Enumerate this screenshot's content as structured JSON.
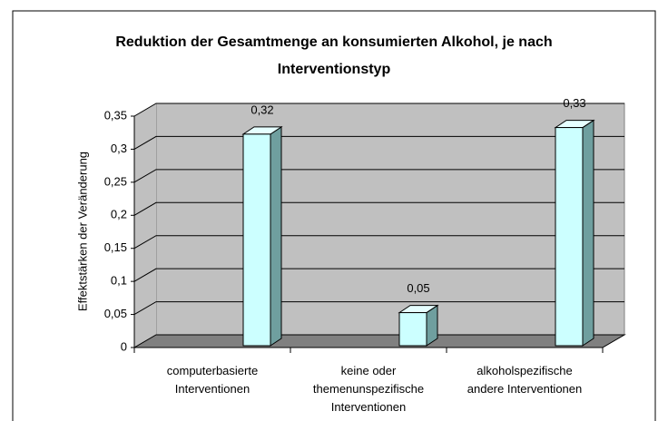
{
  "chart_data": {
    "type": "bar3d",
    "title": "Reduktion der Gesamtmenge an konsumierten Alkohol, je nach Interventionstyp",
    "y_label": "Effektstärken der Veränderung",
    "categories": [
      "computerbasierte\nInterventionen",
      "keine oder\nthemenunspezifische\nInterventionen",
      "alkoholspezifische\nandere Interventionen"
    ],
    "values": [
      0.32,
      0.05,
      0.33
    ],
    "value_labels": [
      "0,32",
      "0,05",
      "0,33"
    ],
    "color": "#ccffff",
    "ylim": [
      0,
      0.35
    ],
    "yticks": [
      0,
      {
        "value": 0.05,
        "label": "0,05"
      },
      {
        "value": 0.1,
        "label": "0,1"
      },
      {
        "value": 0.15,
        "label": "0,15"
      },
      {
        "value": 0.2,
        "label": "0,2"
      },
      {
        "value": 0.25,
        "label": "0,25"
      },
      {
        "value": 0.3,
        "label": "0,3"
      },
      {
        "value": 0.35,
        "label": "0,35"
      }
    ],
    "grid": true
  }
}
